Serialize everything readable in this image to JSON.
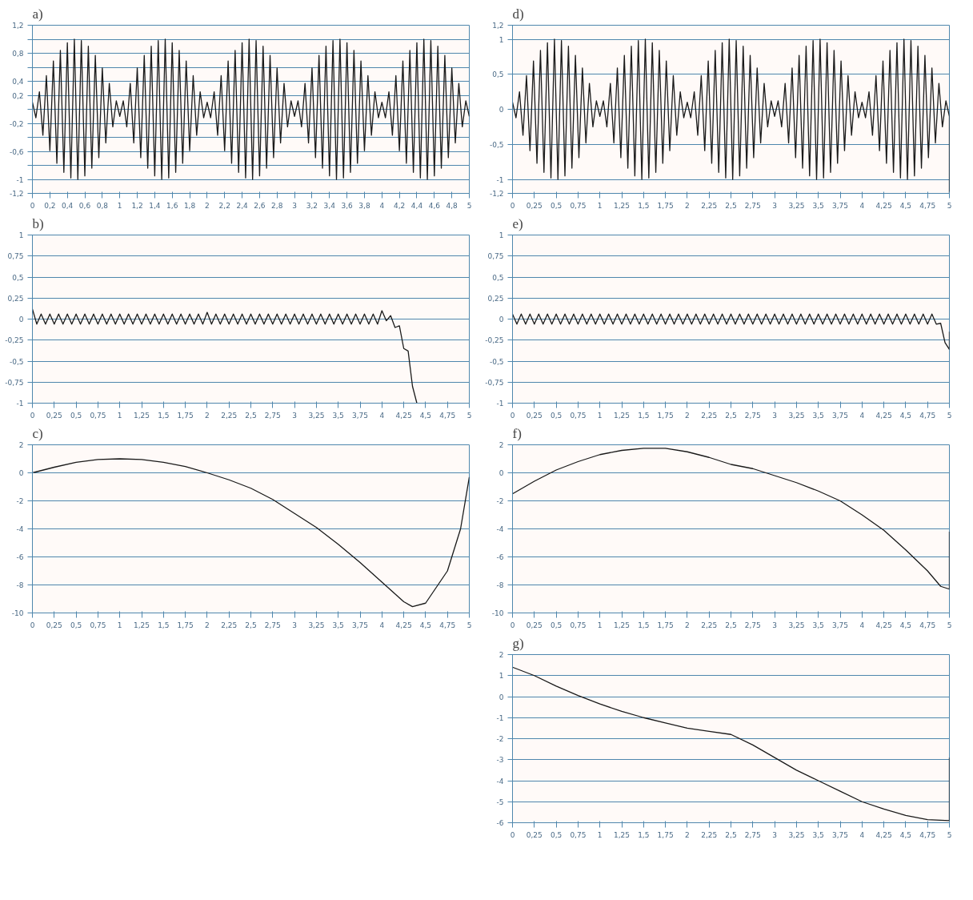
{
  "chart_data": [
    {
      "type": "line",
      "title": "a)",
      "color": "#1a1a1a",
      "grid": "y",
      "xlim": [
        0,
        5
      ],
      "ylim": [
        -1.2,
        1.2
      ],
      "xticks": [
        0,
        {
          "value": 0.2,
          "label": "0,2"
        },
        {
          "value": 0.4,
          "label": "0,4"
        },
        {
          "value": 0.6,
          "label": "0,6"
        },
        {
          "value": 0.8,
          "label": "0,8"
        },
        1,
        {
          "value": 1.2,
          "label": "1,2"
        },
        {
          "value": 1.4,
          "label": "1,4"
        },
        {
          "value": 1.6,
          "label": "1,6"
        },
        {
          "value": 1.8,
          "label": "1,8"
        },
        2,
        {
          "value": 2.2,
          "label": "2,2"
        },
        {
          "value": 2.4,
          "label": "2,4"
        },
        {
          "value": 2.6,
          "label": "2,6"
        },
        {
          "value": 2.8,
          "label": "2,8"
        },
        3,
        {
          "value": 3.2,
          "label": "3,2"
        },
        {
          "value": 3.4,
          "label": "3,4"
        },
        {
          "value": 3.6,
          "label": "3,6"
        },
        {
          "value": 3.8,
          "label": "3,8"
        },
        4,
        {
          "value": 4.2,
          "label": "4,2"
        },
        {
          "value": 4.4,
          "label": "4,4"
        },
        {
          "value": 4.6,
          "label": "4,6"
        },
        {
          "value": 4.8,
          "label": "4,8"
        },
        5
      ],
      "yticks": [
        {
          "value": -1.2,
          "label": "-1,2"
        },
        -1,
        {
          "value": -0.8,
          "label": null
        },
        {
          "value": -0.6,
          "label": "-0,6"
        },
        {
          "value": -0.4,
          "label": null
        },
        {
          "value": -0.2,
          "label": "-0,2"
        },
        {
          "value": 0,
          "label": null
        },
        {
          "value": 0.2,
          "label": "0,2"
        },
        {
          "value": 0.4,
          "label": "0,4"
        },
        {
          "value": 0.6,
          "label": null
        },
        {
          "value": 0.8,
          "label": "0,8"
        },
        {
          "value": 1,
          "label": null
        },
        {
          "value": 1.2,
          "label": "1,2"
        }
      ],
      "x": [
        0,
        0.04,
        0.08,
        0.12,
        0.16,
        0.2,
        0.24,
        0.28,
        0.32,
        0.36,
        0.4,
        0.44,
        0.48,
        0.52,
        0.56,
        0.6,
        0.64,
        0.68,
        0.72,
        0.76,
        0.8,
        0.84,
        0.88,
        0.92,
        0.96,
        1,
        1.04,
        1.08,
        1.12,
        1.16,
        1.2,
        1.24,
        1.28,
        1.32,
        1.36,
        1.4,
        1.44,
        1.48,
        1.52,
        1.56,
        1.6,
        1.64,
        1.68,
        1.72,
        1.76,
        1.8,
        1.84,
        1.88,
        1.92,
        1.96,
        2,
        2.04,
        2.08,
        2.12,
        2.16,
        2.2,
        2.24,
        2.28,
        2.32,
        2.36,
        2.4,
        2.44,
        2.48,
        2.52,
        2.56,
        2.6,
        2.64,
        2.68,
        2.72,
        2.76,
        2.8,
        2.84,
        2.88,
        2.92,
        2.96,
        3,
        3.04,
        3.08,
        3.12,
        3.16,
        3.2,
        3.24,
        3.28,
        3.32,
        3.36,
        3.4,
        3.44,
        3.48,
        3.52,
        3.56,
        3.6,
        3.64,
        3.68,
        3.72,
        3.76,
        3.8,
        3.84,
        3.88,
        3.92,
        3.96,
        4,
        4.04,
        4.08,
        4.12,
        4.16,
        4.2,
        4.24,
        4.28,
        4.32,
        4.36,
        4.4,
        4.44,
        4.48,
        4.52,
        4.56,
        4.6,
        4.64,
        4.68,
        4.72,
        4.76,
        4.8,
        4.84,
        4.88,
        4.92,
        4.96,
        5
      ],
      "values": [
        0.1,
        -0.12,
        0.25,
        -0.37,
        0.48,
        -0.59,
        0.69,
        -0.77,
        0.84,
        -0.9,
        0.95,
        -0.98,
        1.0,
        -1.0,
        0.98,
        -0.95,
        0.9,
        -0.84,
        0.77,
        -0.69,
        0.59,
        -0.48,
        0.37,
        -0.25,
        0.12,
        -0.1,
        0.12,
        -0.25,
        0.37,
        -0.48,
        0.59,
        -0.69,
        0.77,
        -0.84,
        0.9,
        -0.95,
        0.98,
        -1.0,
        1.0,
        -0.98,
        0.95,
        -0.9,
        0.84,
        -0.77,
        0.69,
        -0.59,
        0.48,
        -0.37,
        0.25,
        -0.12,
        0.1,
        -0.12,
        0.25,
        -0.37,
        0.48,
        -0.59,
        0.69,
        -0.77,
        0.84,
        -0.9,
        0.95,
        -0.98,
        1.0,
        -1.0,
        0.98,
        -0.95,
        0.9,
        -0.84,
        0.77,
        -0.69,
        0.59,
        -0.48,
        0.37,
        -0.25,
        0.12,
        -0.1,
        0.12,
        -0.25,
        0.37,
        -0.48,
        0.59,
        -0.69,
        0.77,
        -0.84,
        0.9,
        -0.95,
        0.98,
        -1.0,
        1.0,
        -0.98,
        0.95,
        -0.9,
        0.84,
        -0.77,
        0.69,
        -0.59,
        0.48,
        -0.37,
        0.25,
        -0.12,
        0.1,
        -0.12,
        0.25,
        -0.37,
        0.48,
        -0.59,
        0.69,
        -0.77,
        0.84,
        -0.9,
        0.95,
        -0.98,
        1.0,
        -1.0,
        0.98,
        -0.95,
        0.9,
        -0.84,
        0.77,
        -0.69,
        0.59,
        -0.48,
        0.37,
        -0.25,
        0.12,
        -0.1
      ]
    },
    {
      "type": "line",
      "title": "d)",
      "color": "#1a1a1a",
      "grid": "y",
      "xlim": [
        0,
        5
      ],
      "ylim": [
        -1.2,
        1.2
      ],
      "xticks": [
        0,
        {
          "value": 0.25,
          "label": "0,25"
        },
        {
          "value": 0.5,
          "label": "0,5"
        },
        {
          "value": 0.75,
          "label": "0,75"
        },
        1,
        {
          "value": 1.25,
          "label": "1,25"
        },
        {
          "value": 1.5,
          "label": "1,5"
        },
        {
          "value": 1.75,
          "label": "1,75"
        },
        2,
        {
          "value": 2.25,
          "label": "2,25"
        },
        {
          "value": 2.5,
          "label": "2,5"
        },
        {
          "value": 2.75,
          "label": "2,75"
        },
        3,
        {
          "value": 3.25,
          "label": "3,25"
        },
        {
          "value": 3.5,
          "label": "3,5"
        },
        {
          "value": 3.75,
          "label": "3,75"
        },
        4,
        {
          "value": 4.25,
          "label": "4,25"
        },
        {
          "value": 4.5,
          "label": "4,5"
        },
        {
          "value": 4.75,
          "label": "4,75"
        },
        5
      ],
      "yticks": [
        {
          "value": -1.2,
          "label": "-1,2"
        },
        -1,
        {
          "value": -0.5,
          "label": "-0,5"
        },
        0,
        {
          "value": 0.5,
          "label": "0,5"
        },
        1,
        {
          "value": 1.2,
          "label": "1,2"
        }
      ],
      "x": [
        0,
        0.04,
        0.08,
        0.12,
        0.16,
        0.2,
        0.24,
        0.28,
        0.32,
        0.36,
        0.4,
        0.44,
        0.48,
        0.52,
        0.56,
        0.6,
        0.64,
        0.68,
        0.72,
        0.76,
        0.8,
        0.84,
        0.88,
        0.92,
        0.96,
        1,
        1.04,
        1.08,
        1.12,
        1.16,
        1.2,
        1.24,
        1.28,
        1.32,
        1.36,
        1.4,
        1.44,
        1.48,
        1.52,
        1.56,
        1.6,
        1.64,
        1.68,
        1.72,
        1.76,
        1.8,
        1.84,
        1.88,
        1.92,
        1.96,
        2,
        2.04,
        2.08,
        2.12,
        2.16,
        2.2,
        2.24,
        2.28,
        2.32,
        2.36,
        2.4,
        2.44,
        2.48,
        2.52,
        2.56,
        2.6,
        2.64,
        2.68,
        2.72,
        2.76,
        2.8,
        2.84,
        2.88,
        2.92,
        2.96,
        3,
        3.04,
        3.08,
        3.12,
        3.16,
        3.2,
        3.24,
        3.28,
        3.32,
        3.36,
        3.4,
        3.44,
        3.48,
        3.52,
        3.56,
        3.6,
        3.64,
        3.68,
        3.72,
        3.76,
        3.8,
        3.84,
        3.88,
        3.92,
        3.96,
        4,
        4.04,
        4.08,
        4.12,
        4.16,
        4.2,
        4.24,
        4.28,
        4.32,
        4.36,
        4.4,
        4.44,
        4.48,
        4.52,
        4.56,
        4.6,
        4.64,
        4.68,
        4.72,
        4.76,
        4.8,
        4.84,
        4.88,
        4.92,
        4.96,
        5,
        5
      ],
      "values": [
        0.1,
        -0.12,
        0.25,
        -0.37,
        0.48,
        -0.59,
        0.69,
        -0.77,
        0.84,
        -0.9,
        0.95,
        -0.98,
        1.0,
        -1.0,
        0.98,
        -0.95,
        0.9,
        -0.84,
        0.77,
        -0.69,
        0.59,
        -0.48,
        0.37,
        -0.25,
        0.12,
        -0.1,
        0.12,
        -0.25,
        0.37,
        -0.48,
        0.59,
        -0.69,
        0.77,
        -0.84,
        0.9,
        -0.95,
        0.98,
        -1.0,
        1.0,
        -0.98,
        0.95,
        -0.9,
        0.84,
        -0.77,
        0.69,
        -0.59,
        0.48,
        -0.37,
        0.25,
        -0.12,
        0.1,
        -0.12,
        0.25,
        -0.37,
        0.48,
        -0.59,
        0.69,
        -0.77,
        0.84,
        -0.9,
        0.95,
        -0.98,
        1.0,
        -1.0,
        0.98,
        -0.95,
        0.9,
        -0.84,
        0.77,
        -0.69,
        0.59,
        -0.48,
        0.37,
        -0.25,
        0.12,
        -0.1,
        0.12,
        -0.25,
        0.37,
        -0.48,
        0.59,
        -0.69,
        0.77,
        -0.84,
        0.9,
        -0.95,
        0.98,
        -1.0,
        1.0,
        -0.98,
        0.95,
        -0.9,
        0.84,
        -0.77,
        0.69,
        -0.59,
        0.48,
        -0.37,
        0.25,
        -0.12,
        0.1,
        -0.12,
        0.25,
        -0.37,
        0.48,
        -0.59,
        0.69,
        -0.77,
        0.84,
        -0.9,
        0.95,
        -0.98,
        1.0,
        -1.0,
        0.98,
        -0.95,
        0.9,
        -0.84,
        0.77,
        -0.69,
        0.59,
        -0.48,
        0.37,
        -0.25,
        0.12,
        -0.1,
        -1.2
      ]
    },
    {
      "type": "line",
      "title": "b)",
      "color": "#1a1a1a",
      "grid": "y",
      "xlim": [
        0,
        5
      ],
      "ylim": [
        -1,
        1
      ],
      "xticks": [
        0,
        {
          "value": 0.25,
          "label": "0,25"
        },
        {
          "value": 0.5,
          "label": "0,5"
        },
        {
          "value": 0.75,
          "label": "0,75"
        },
        1,
        {
          "value": 1.25,
          "label": "1,25"
        },
        {
          "value": 1.5,
          "label": "1,5"
        },
        {
          "value": 1.75,
          "label": "1,75"
        },
        2,
        {
          "value": 2.25,
          "label": "2,25"
        },
        {
          "value": 2.5,
          "label": "2,5"
        },
        {
          "value": 2.75,
          "label": "2,75"
        },
        3,
        {
          "value": 3.25,
          "label": "3,25"
        },
        {
          "value": 3.5,
          "label": "3,5"
        },
        {
          "value": 3.75,
          "label": "3,75"
        },
        4,
        {
          "value": 4.25,
          "label": "4,25"
        },
        {
          "value": 4.5,
          "label": "4,5"
        },
        {
          "value": 4.75,
          "label": "4,75"
        },
        5
      ],
      "yticks": [
        -1,
        {
          "value": -0.75,
          "label": "-0,75"
        },
        {
          "value": -0.5,
          "label": "-0,5"
        },
        {
          "value": -0.25,
          "label": "-0,25"
        },
        0,
        {
          "value": 0.25,
          "label": "0,25"
        },
        {
          "value": 0.5,
          "label": "0,5"
        },
        {
          "value": 0.75,
          "label": "0,75"
        },
        1
      ],
      "x": [
        0,
        0.05,
        0.1,
        0.15,
        0.2,
        0.25,
        0.3,
        0.35,
        0.4,
        0.45,
        0.5,
        0.55,
        0.6,
        0.65,
        0.7,
        0.75,
        0.8,
        0.85,
        0.9,
        0.95,
        1,
        1.05,
        1.1,
        1.15,
        1.2,
        1.25,
        1.3,
        1.35,
        1.4,
        1.45,
        1.5,
        1.55,
        1.6,
        1.65,
        1.7,
        1.75,
        1.8,
        1.85,
        1.9,
        1.95,
        2,
        2.05,
        2.1,
        2.15,
        2.2,
        2.25,
        2.3,
        2.35,
        2.4,
        2.45,
        2.5,
        2.55,
        2.6,
        2.65,
        2.7,
        2.75,
        2.8,
        2.85,
        2.9,
        2.95,
        3,
        3.05,
        3.1,
        3.15,
        3.2,
        3.25,
        3.3,
        3.35,
        3.4,
        3.45,
        3.5,
        3.55,
        3.6,
        3.65,
        3.7,
        3.75,
        3.8,
        3.85,
        3.9,
        3.95,
        4,
        4.05,
        4.1,
        4.15,
        4.2,
        4.25,
        4.3,
        4.35,
        4.4
      ],
      "values": [
        0.12,
        -0.06,
        0.06,
        -0.06,
        0.06,
        -0.06,
        0.06,
        -0.06,
        0.06,
        -0.06,
        0.06,
        -0.06,
        0.06,
        -0.06,
        0.06,
        -0.06,
        0.06,
        -0.06,
        0.06,
        -0.06,
        0.06,
        -0.06,
        0.06,
        -0.06,
        0.06,
        -0.06,
        0.06,
        -0.06,
        0.06,
        -0.06,
        0.06,
        -0.06,
        0.06,
        -0.06,
        0.06,
        -0.06,
        0.06,
        -0.06,
        0.06,
        -0.06,
        0.08,
        -0.06,
        0.06,
        -0.06,
        0.06,
        -0.06,
        0.06,
        -0.06,
        0.06,
        -0.06,
        0.06,
        -0.06,
        0.06,
        -0.06,
        0.06,
        -0.06,
        0.06,
        -0.06,
        0.06,
        -0.06,
        0.06,
        -0.06,
        0.06,
        -0.06,
        0.06,
        -0.06,
        0.06,
        -0.06,
        0.06,
        -0.06,
        0.06,
        -0.06,
        0.06,
        -0.06,
        0.06,
        -0.06,
        0.06,
        -0.06,
        0.06,
        -0.06,
        0.1,
        -0.02,
        0.04,
        -0.1,
        -0.08,
        -0.35,
        -0.38,
        -0.8,
        -1.0
      ]
    },
    {
      "type": "line",
      "title": "e)",
      "color": "#1a1a1a",
      "grid": "y",
      "xlim": [
        0,
        5
      ],
      "ylim": [
        -1,
        1
      ],
      "xticks": [
        0,
        {
          "value": 0.25,
          "label": "0,25"
        },
        {
          "value": 0.5,
          "label": "0,5"
        },
        {
          "value": 0.75,
          "label": "0,75"
        },
        1,
        {
          "value": 1.25,
          "label": "1,25"
        },
        {
          "value": 1.5,
          "label": "1,5"
        },
        {
          "value": 1.75,
          "label": "1,75"
        },
        2,
        {
          "value": 2.25,
          "label": "2,25"
        },
        {
          "value": 2.5,
          "label": "2,5"
        },
        {
          "value": 2.75,
          "label": "2,75"
        },
        3,
        {
          "value": 3.25,
          "label": "3,25"
        },
        {
          "value": 3.5,
          "label": "3,5"
        },
        {
          "value": 3.75,
          "label": "3,75"
        },
        4,
        {
          "value": 4.25,
          "label": "4,25"
        },
        {
          "value": 4.5,
          "label": "4,5"
        },
        {
          "value": 4.75,
          "label": "4,75"
        },
        5
      ],
      "yticks": [
        -1,
        {
          "value": -0.75,
          "label": "-0,75"
        },
        {
          "value": -0.5,
          "label": "-0,5"
        },
        {
          "value": -0.25,
          "label": "-0,25"
        },
        0,
        {
          "value": 0.25,
          "label": "0,25"
        },
        {
          "value": 0.5,
          "label": "0,5"
        },
        {
          "value": 0.75,
          "label": "0,75"
        },
        1
      ],
      "x": [
        0,
        0.05,
        0.1,
        0.15,
        0.2,
        0.25,
        0.3,
        0.35,
        0.4,
        0.45,
        0.5,
        0.55,
        0.6,
        0.65,
        0.7,
        0.75,
        0.8,
        0.85,
        0.9,
        0.95,
        1,
        1.05,
        1.1,
        1.15,
        1.2,
        1.25,
        1.3,
        1.35,
        1.4,
        1.45,
        1.5,
        1.55,
        1.6,
        1.65,
        1.7,
        1.75,
        1.8,
        1.85,
        1.9,
        1.95,
        2,
        2.05,
        2.1,
        2.15,
        2.2,
        2.25,
        2.3,
        2.35,
        2.4,
        2.45,
        2.5,
        2.55,
        2.6,
        2.65,
        2.7,
        2.75,
        2.8,
        2.85,
        2.9,
        2.95,
        3,
        3.05,
        3.1,
        3.15,
        3.2,
        3.25,
        3.3,
        3.35,
        3.4,
        3.45,
        3.5,
        3.55,
        3.6,
        3.65,
        3.7,
        3.75,
        3.8,
        3.85,
        3.9,
        3.95,
        4,
        4.05,
        4.1,
        4.15,
        4.2,
        4.25,
        4.3,
        4.35,
        4.4,
        4.45,
        4.5,
        4.55,
        4.6,
        4.65,
        4.7,
        4.75,
        4.8,
        4.85,
        4.9,
        4.95,
        5,
        5
      ],
      "values": [
        0.06,
        -0.06,
        0.06,
        -0.06,
        0.06,
        -0.06,
        0.06,
        -0.06,
        0.06,
        -0.06,
        0.06,
        -0.06,
        0.06,
        -0.06,
        0.06,
        -0.06,
        0.06,
        -0.06,
        0.06,
        -0.06,
        0.06,
        -0.06,
        0.06,
        -0.06,
        0.06,
        -0.06,
        0.06,
        -0.06,
        0.06,
        -0.06,
        0.06,
        -0.06,
        0.06,
        -0.06,
        0.06,
        -0.06,
        0.06,
        -0.06,
        0.06,
        -0.06,
        0.06,
        -0.06,
        0.06,
        -0.06,
        0.06,
        -0.06,
        0.06,
        -0.06,
        0.06,
        -0.06,
        0.06,
        -0.06,
        0.06,
        -0.06,
        0.06,
        -0.06,
        0.06,
        -0.06,
        0.06,
        -0.06,
        0.06,
        -0.06,
        0.06,
        -0.06,
        0.06,
        -0.06,
        0.06,
        -0.06,
        0.06,
        -0.06,
        0.06,
        -0.06,
        0.06,
        -0.06,
        0.06,
        -0.06,
        0.06,
        -0.06,
        0.06,
        -0.06,
        0.06,
        -0.06,
        0.06,
        -0.06,
        0.06,
        -0.06,
        0.06,
        -0.06,
        0.06,
        -0.06,
        0.06,
        -0.06,
        0.06,
        -0.06,
        0.06,
        -0.06,
        0.06,
        -0.06,
        -0.05,
        -0.28,
        -0.36,
        -0.15
      ]
    },
    {
      "type": "line",
      "title": "c)",
      "color": "#1a1a1a",
      "grid": "y",
      "xlim": [
        0,
        5
      ],
      "ylim": [
        -10,
        2
      ],
      "xticks": [
        0,
        {
          "value": 0.25,
          "label": "0,25"
        },
        {
          "value": 0.5,
          "label": "0,5"
        },
        {
          "value": 0.75,
          "label": "0,75"
        },
        1,
        {
          "value": 1.25,
          "label": "1,25"
        },
        {
          "value": 1.5,
          "label": "1,5"
        },
        {
          "value": 1.75,
          "label": "1,75"
        },
        2,
        {
          "value": 2.25,
          "label": "2,25"
        },
        {
          "value": 2.5,
          "label": "2,5"
        },
        {
          "value": 2.75,
          "label": "2,75"
        },
        3,
        {
          "value": 3.25,
          "label": "3,25"
        },
        {
          "value": 3.5,
          "label": "3,5"
        },
        {
          "value": 3.75,
          "label": "3,75"
        },
        4,
        {
          "value": 4.25,
          "label": "4,25"
        },
        {
          "value": 4.5,
          "label": "4,5"
        },
        {
          "value": 4.75,
          "label": "4,75"
        },
        5
      ],
      "yticks": [
        -10,
        -8,
        -6,
        -4,
        -2,
        0,
        2
      ],
      "x": [
        0,
        0.25,
        0.5,
        0.75,
        1,
        1.25,
        1.5,
        1.75,
        2,
        2.25,
        2.5,
        2.75,
        3,
        3.25,
        3.5,
        3.75,
        4,
        4.25,
        4.35,
        4.5,
        4.75,
        4.9,
        5
      ],
      "values": [
        0,
        0.4,
        0.75,
        0.95,
        1.0,
        0.95,
        0.75,
        0.45,
        0,
        -0.5,
        -1.1,
        -1.9,
        -2.9,
        -3.9,
        -5.1,
        -6.4,
        -7.8,
        -9.2,
        -9.55,
        -9.3,
        -7,
        -4,
        -0.3
      ]
    },
    {
      "type": "line",
      "title": "f)",
      "color": "#1a1a1a",
      "grid": "y",
      "xlim": [
        0,
        5
      ],
      "ylim": [
        -10,
        2
      ],
      "xticks": [
        0,
        {
          "value": 0.25,
          "label": "0,25"
        },
        {
          "value": 0.5,
          "label": "0,5"
        },
        {
          "value": 0.75,
          "label": "0,75"
        },
        1,
        {
          "value": 1.25,
          "label": "1,25"
        },
        {
          "value": 1.5,
          "label": "1,5"
        },
        {
          "value": 1.75,
          "label": "1,75"
        },
        2,
        {
          "value": 2.25,
          "label": "2,25"
        },
        {
          "value": 2.5,
          "label": "2,5"
        },
        {
          "value": 2.75,
          "label": "2,75"
        },
        3,
        {
          "value": 3.25,
          "label": "3,25"
        },
        {
          "value": 3.5,
          "label": "3,5"
        },
        {
          "value": 3.75,
          "label": "3,75"
        },
        4,
        {
          "value": 4.25,
          "label": "4,25"
        },
        {
          "value": 4.5,
          "label": "4,5"
        },
        {
          "value": 4.75,
          "label": "4,75"
        },
        5
      ],
      "yticks": [
        -10,
        -8,
        -6,
        -4,
        -2,
        0,
        2
      ],
      "x": [
        0,
        0.25,
        0.5,
        0.75,
        1,
        1.25,
        1.5,
        1.75,
        2,
        2.25,
        2.5,
        2.75,
        3,
        3.25,
        3.5,
        3.75,
        4,
        4.25,
        4.5,
        4.75,
        4.9,
        5,
        5
      ],
      "values": [
        -1.5,
        -0.6,
        0.2,
        0.8,
        1.3,
        1.6,
        1.75,
        1.75,
        1.5,
        1.1,
        0.6,
        0.3,
        -0.2,
        -0.7,
        -1.3,
        -2.0,
        -3.0,
        -4.1,
        -5.5,
        -7.0,
        -8.1,
        -8.3,
        -4.2
      ]
    },
    {
      "type": "line",
      "title": "g)",
      "color": "#1a1a1a",
      "grid": "y",
      "xlim": [
        0,
        5
      ],
      "ylim": [
        -6,
        2
      ],
      "xticks": [
        0,
        {
          "value": 0.25,
          "label": "0,25"
        },
        {
          "value": 0.5,
          "label": "0,5"
        },
        {
          "value": 0.75,
          "label": "0,75"
        },
        1,
        {
          "value": 1.25,
          "label": "1,25"
        },
        {
          "value": 1.5,
          "label": "1,5"
        },
        {
          "value": 1.75,
          "label": "1,75"
        },
        2,
        {
          "value": 2.25,
          "label": "2,25"
        },
        {
          "value": 2.5,
          "label": "2,5"
        },
        {
          "value": 2.75,
          "label": "2,75"
        },
        3,
        {
          "value": 3.25,
          "label": "3,25"
        },
        {
          "value": 3.5,
          "label": "3,5"
        },
        {
          "value": 3.75,
          "label": "3,75"
        },
        4,
        {
          "value": 4.25,
          "label": "4,25"
        },
        {
          "value": 4.5,
          "label": "4,5"
        },
        {
          "value": 4.75,
          "label": "4,75"
        },
        5
      ],
      "yticks": [
        -6,
        -5,
        -4,
        -3,
        -2,
        -1,
        0,
        1,
        2
      ],
      "x": [
        0,
        0.25,
        0.5,
        0.75,
        1,
        1.25,
        1.5,
        1.75,
        2,
        2.25,
        2.5,
        2.75,
        3,
        3.25,
        3.5,
        3.75,
        4,
        4.25,
        4.5,
        4.75,
        5,
        5
      ],
      "values": [
        1.4,
        1.0,
        0.5,
        0.05,
        -0.35,
        -0.7,
        -1.0,
        -1.25,
        -1.5,
        -1.65,
        -1.8,
        -2.3,
        -2.9,
        -3.5,
        -4.0,
        -4.5,
        -5.0,
        -5.35,
        -5.65,
        -5.85,
        -5.9,
        -2.9
      ]
    }
  ]
}
